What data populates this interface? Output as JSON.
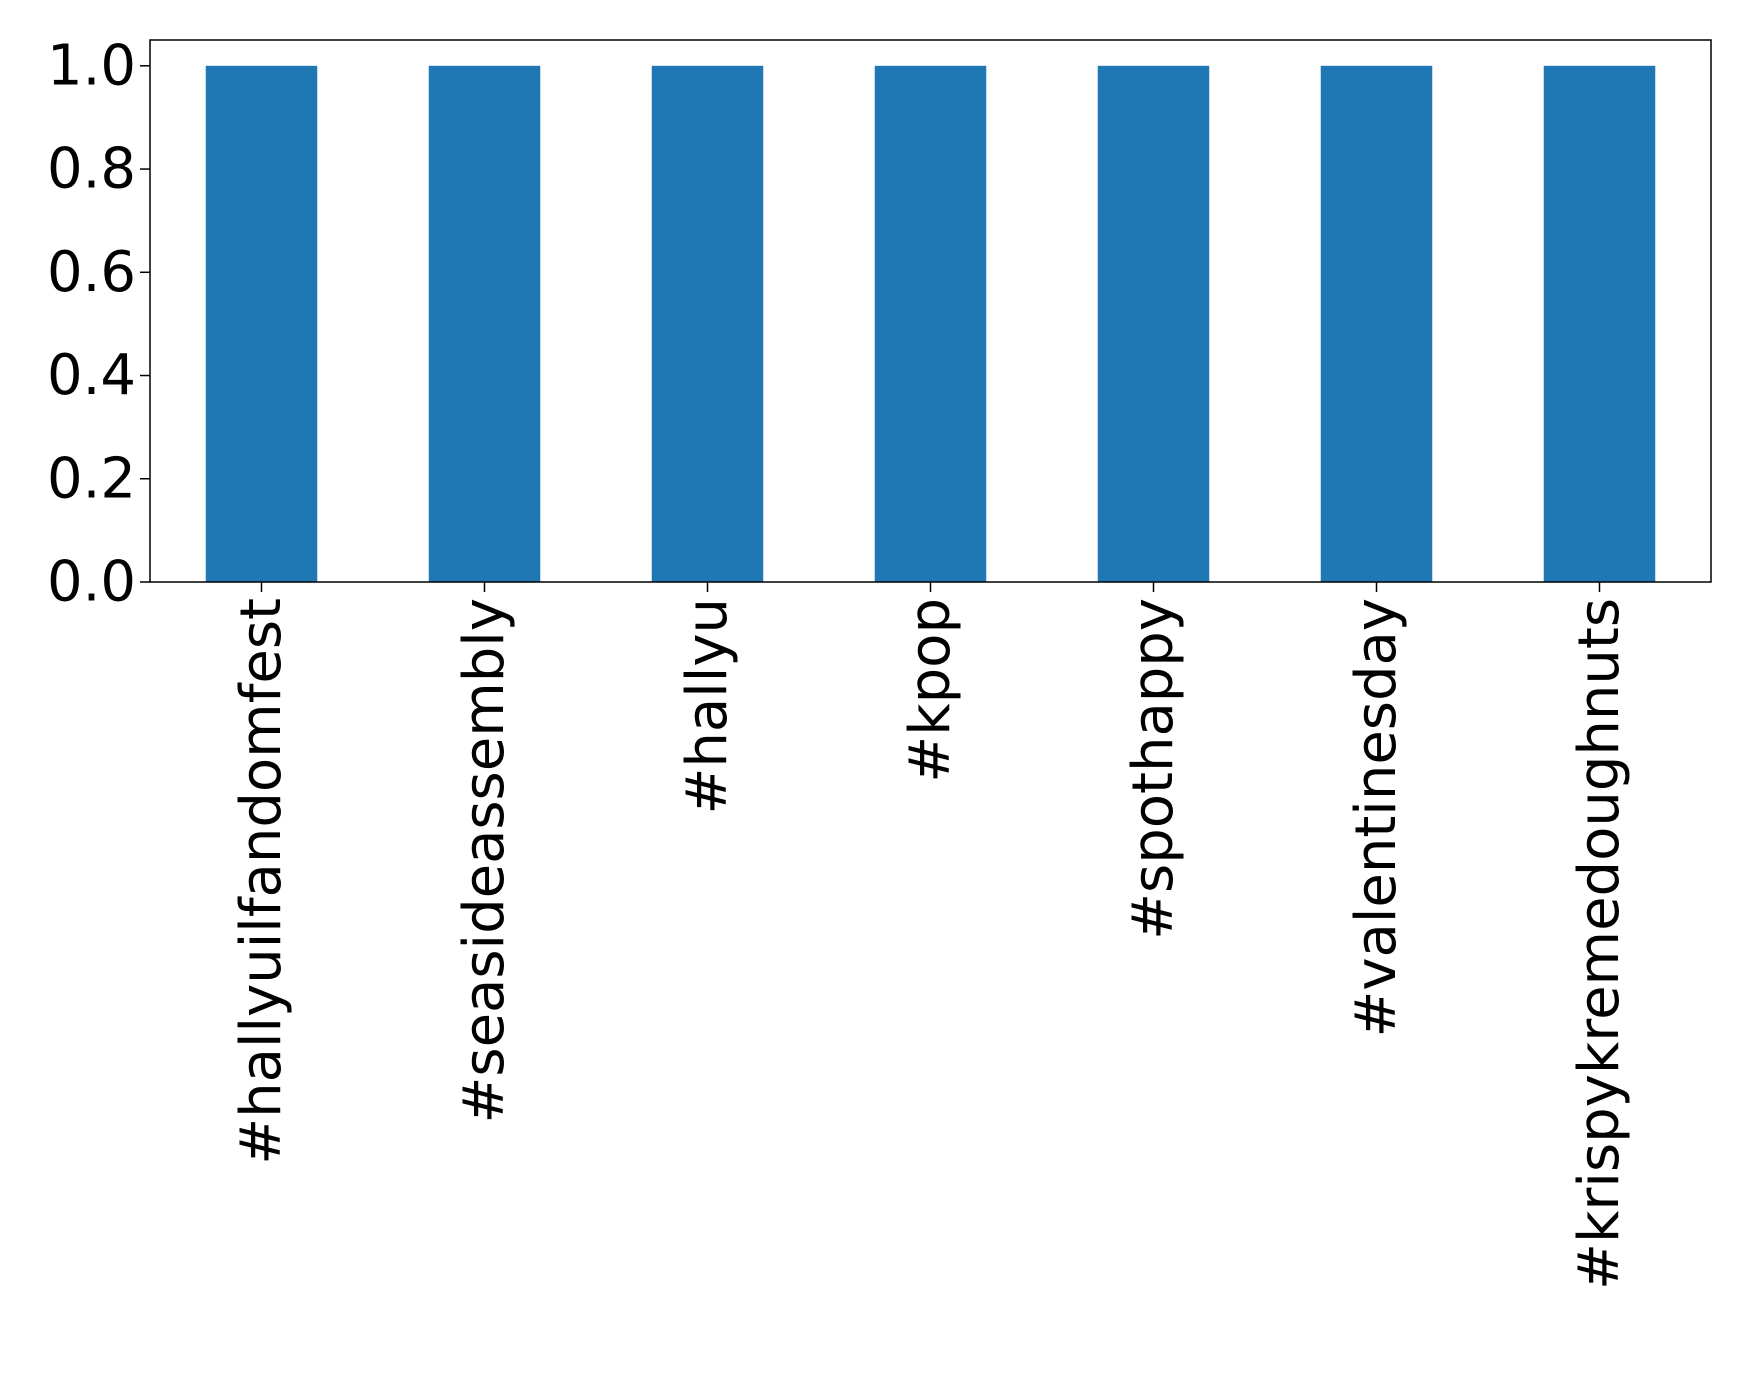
{
  "chart_data": {
    "type": "bar",
    "categories": [
      "#hallyuilfandomfest",
      "#seasideassembly",
      "#hallyu",
      "#kpop",
      "#spothappy",
      "#valentinesday",
      "#krispykremedoughnuts"
    ],
    "values": [
      1.0,
      1.0,
      1.0,
      1.0,
      1.0,
      1.0,
      1.0
    ],
    "title": "",
    "xlabel": "",
    "ylabel": "",
    "ylim": [
      0,
      1.05
    ],
    "yticks": [
      "0.0",
      "0.2",
      "0.4",
      "0.6",
      "0.8",
      "1.0"
    ],
    "grid": false,
    "colors": {
      "bar": "#1f77b4",
      "axis": "#000000"
    }
  }
}
